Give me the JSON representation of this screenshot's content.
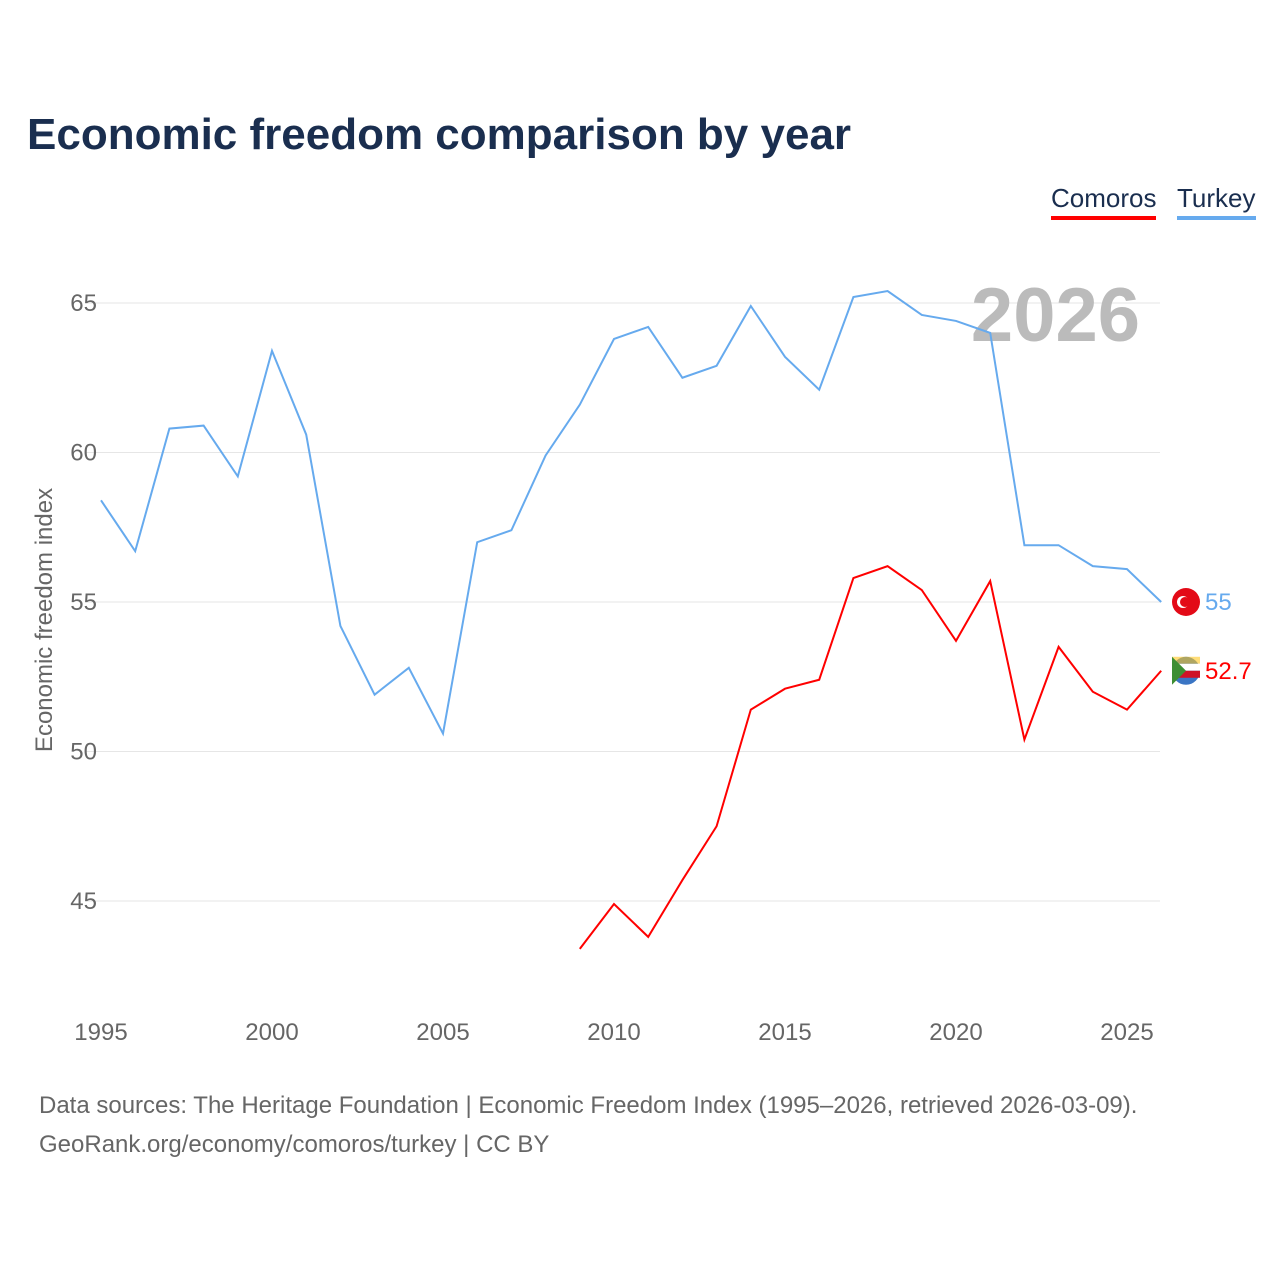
{
  "chart_data": {
    "type": "line",
    "title": "Economic freedom comparison by year",
    "xlabel": "",
    "ylabel": "Economic freedom index",
    "xlim": [
      1995,
      2026
    ],
    "ylim": [
      42,
      68
    ],
    "yticks": [
      45,
      50,
      55,
      60,
      65
    ],
    "xticks": [
      1995,
      2000,
      2005,
      2010,
      2015,
      2020,
      2025
    ],
    "grid": true,
    "legend_position": "top-right",
    "watermark_year": "2026",
    "series": [
      {
        "name": "Comoros",
        "color": "#ff0000",
        "end_label": "52.7",
        "x": [
          2009,
          2010,
          2011,
          2012,
          2013,
          2014,
          2015,
          2016,
          2017,
          2018,
          2019,
          2020,
          2021,
          2022,
          2023,
          2024,
          2025,
          2026
        ],
        "values": [
          43.4,
          44.9,
          43.8,
          45.7,
          47.5,
          51.4,
          52.1,
          52.4,
          55.8,
          56.2,
          55.4,
          53.7,
          55.7,
          50.4,
          53.5,
          52.0,
          51.4,
          52.7
        ]
      },
      {
        "name": "Turkey",
        "color": "#66aaee",
        "end_label": "55",
        "x": [
          1995,
          1996,
          1997,
          1998,
          1999,
          2000,
          2001,
          2002,
          2003,
          2004,
          2005,
          2006,
          2007,
          2008,
          2009,
          2010,
          2011,
          2012,
          2013,
          2014,
          2015,
          2016,
          2017,
          2018,
          2019,
          2020,
          2021,
          2022,
          2023,
          2024,
          2025,
          2026
        ],
        "values": [
          58.4,
          56.7,
          60.8,
          60.9,
          59.2,
          63.4,
          60.6,
          54.2,
          51.9,
          52.8,
          50.6,
          57.0,
          57.4,
          59.9,
          61.6,
          63.8,
          64.2,
          62.5,
          62.9,
          64.9,
          63.2,
          62.1,
          65.2,
          65.4,
          64.6,
          64.4,
          64.0,
          56.9,
          56.9,
          56.2,
          56.1,
          55.0
        ]
      }
    ]
  },
  "footer": {
    "line1": "Data sources: The Heritage Foundation | Economic Freedom Index (1995–2026, retrieved 2026-03-09).",
    "line2": "GeoRank.org/economy/comoros/turkey | CC BY"
  }
}
